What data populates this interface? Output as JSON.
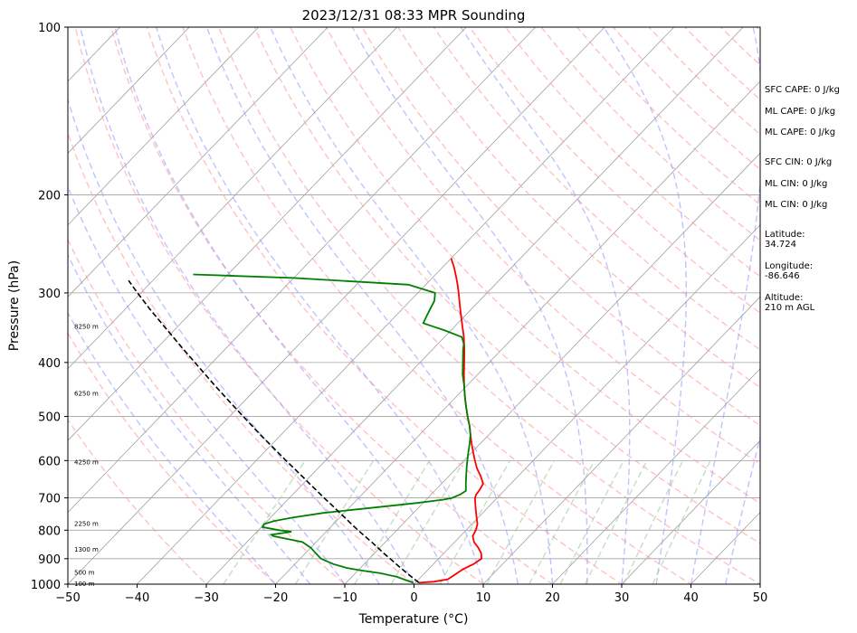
{
  "chart_data": {
    "type": "line",
    "title": "2023/12/31 08:33 MPR Sounding",
    "xlabel": "Temperature (°C)",
    "ylabel": "Pressure (hPa)",
    "xlim": [
      -50,
      50
    ],
    "ylim": [
      1000,
      100
    ],
    "y_scale": "log",
    "skew_T": true,
    "x_ticks": [
      -50,
      -40,
      -30,
      -20,
      -10,
      0,
      10,
      20,
      30,
      40,
      50
    ],
    "y_ticks": [
      100,
      200,
      300,
      400,
      500,
      600,
      700,
      800,
      900,
      1000
    ],
    "grid": true,
    "colors": {
      "temperature": "#ff0000",
      "dewpoint": "#008000",
      "parcel": "#000000",
      "dry_adiabats": "#ff9999",
      "moist_adiabats": "#9999ff",
      "mixing_ratio": "#99cc99",
      "isotherms": "#a0a0a0"
    },
    "series": [
      {
        "key": "temperature",
        "points": [
          [
            994,
            0.5
          ],
          [
            990,
            2.5
          ],
          [
            980,
            4.2
          ],
          [
            960,
            4.6
          ],
          [
            940,
            5.0
          ],
          [
            920,
            5.8
          ],
          [
            900,
            6.2
          ],
          [
            880,
            5.4
          ],
          [
            860,
            4.2
          ],
          [
            840,
            2.8
          ],
          [
            820,
            1.8
          ],
          [
            800,
            1.4
          ],
          [
            780,
            0.8
          ],
          [
            760,
            -0.2
          ],
          [
            740,
            -1.2
          ],
          [
            720,
            -2.2
          ],
          [
            700,
            -3.2
          ],
          [
            690,
            -3.5
          ],
          [
            680,
            -3.6
          ],
          [
            670,
            -3.8
          ],
          [
            660,
            -4.0
          ],
          [
            640,
            -5.4
          ],
          [
            620,
            -7.0
          ],
          [
            600,
            -8.4
          ],
          [
            580,
            -9.8
          ],
          [
            560,
            -11.2
          ],
          [
            540,
            -12.6
          ],
          [
            520,
            -14.0
          ],
          [
            500,
            -15.6
          ],
          [
            480,
            -17.2
          ],
          [
            460,
            -18.8
          ],
          [
            440,
            -20.4
          ],
          [
            420,
            -22.0
          ],
          [
            400,
            -23.6
          ],
          [
            380,
            -25.3
          ],
          [
            360,
            -27.2
          ],
          [
            340,
            -29.4
          ],
          [
            320,
            -31.7
          ],
          [
            300,
            -34.1
          ],
          [
            290,
            -35.4
          ],
          [
            280,
            -36.8
          ],
          [
            270,
            -38.3
          ],
          [
            260,
            -40.0
          ]
        ]
      },
      {
        "key": "dewpoint",
        "points": [
          [
            994,
            -0.3
          ],
          [
            985,
            -1.5
          ],
          [
            970,
            -3.5
          ],
          [
            955,
            -6.5
          ],
          [
            945,
            -9.5
          ],
          [
            935,
            -12.0
          ],
          [
            920,
            -14.5
          ],
          [
            900,
            -17.0
          ],
          [
            880,
            -18.5
          ],
          [
            860,
            -20.0
          ],
          [
            840,
            -22.0
          ],
          [
            820,
            -27.0
          ],
          [
            815,
            -27.5
          ],
          [
            805,
            -25.0
          ],
          [
            800,
            -27.0
          ],
          [
            790,
            -29.8
          ],
          [
            780,
            -30.0
          ],
          [
            770,
            -29.0
          ],
          [
            760,
            -27.0
          ],
          [
            745,
            -23.0
          ],
          [
            730,
            -17.0
          ],
          [
            715,
            -11.0
          ],
          [
            705,
            -7.5
          ],
          [
            700,
            -6.5
          ],
          [
            690,
            -5.8
          ],
          [
            680,
            -5.5
          ],
          [
            660,
            -6.5
          ],
          [
            640,
            -7.5
          ],
          [
            620,
            -8.5
          ],
          [
            600,
            -9.5
          ],
          [
            580,
            -10.5
          ],
          [
            560,
            -11.5
          ],
          [
            540,
            -12.6
          ],
          [
            520,
            -14.0
          ],
          [
            500,
            -15.6
          ],
          [
            480,
            -17.2
          ],
          [
            460,
            -18.8
          ],
          [
            440,
            -20.4
          ],
          [
            420,
            -22.2
          ],
          [
            400,
            -23.8
          ],
          [
            380,
            -25.5
          ],
          [
            370,
            -26.3
          ],
          [
            360,
            -27.5
          ],
          [
            350,
            -31.0
          ],
          [
            345,
            -33.0
          ],
          [
            340,
            -35.0
          ],
          [
            330,
            -35.5
          ],
          [
            320,
            -36.0
          ],
          [
            310,
            -36.5
          ],
          [
            300,
            -37.5
          ],
          [
            290,
            -42.5
          ],
          [
            282,
            -60.0
          ],
          [
            278,
            -75.0
          ]
        ]
      },
      {
        "key": "parcel",
        "points": [
          [
            994,
            0.5
          ],
          [
            980,
            -0.6
          ],
          [
            960,
            -2.2
          ],
          [
            940,
            -3.8
          ],
          [
            920,
            -5.4
          ],
          [
            900,
            -7.0
          ],
          [
            880,
            -8.7
          ],
          [
            860,
            -10.3
          ],
          [
            840,
            -12.0
          ],
          [
            820,
            -13.8
          ],
          [
            800,
            -15.6
          ],
          [
            780,
            -17.4
          ],
          [
            760,
            -19.2
          ],
          [
            740,
            -21.1
          ],
          [
            720,
            -23.0
          ],
          [
            700,
            -25.0
          ],
          [
            680,
            -27.0
          ],
          [
            660,
            -29.1
          ],
          [
            640,
            -31.2
          ],
          [
            620,
            -33.4
          ],
          [
            600,
            -35.7
          ],
          [
            580,
            -38.0
          ],
          [
            560,
            -40.4
          ],
          [
            540,
            -42.9
          ],
          [
            520,
            -45.4
          ],
          [
            500,
            -48.0
          ],
          [
            480,
            -50.7
          ],
          [
            460,
            -53.5
          ],
          [
            440,
            -56.4
          ],
          [
            420,
            -59.4
          ],
          [
            400,
            -62.5
          ],
          [
            380,
            -65.8
          ],
          [
            360,
            -69.2
          ],
          [
            340,
            -72.8
          ],
          [
            320,
            -76.6
          ],
          [
            300,
            -80.5
          ],
          [
            285,
            -83.5
          ]
        ]
      }
    ],
    "height_labels": [
      {
        "text": "100 m",
        "p": 1000
      },
      {
        "text": "500 m",
        "p": 955
      },
      {
        "text": "1300 m",
        "p": 868
      },
      {
        "text": "2250 m",
        "p": 780
      },
      {
        "text": "4250 m",
        "p": 605
      },
      {
        "text": "6250 m",
        "p": 455
      },
      {
        "text": "8250 m",
        "p": 345
      }
    ],
    "stats": [
      {
        "lines": [
          "SFC CAPE: 0 J/kg"
        ]
      },
      {
        "lines": [
          "ML CAPE: 0 J/kg"
        ]
      },
      {
        "lines": [
          "ML CAPE: 0 J/kg"
        ]
      },
      {
        "lines": [
          "SFC CIN: 0 J/kg"
        ]
      },
      {
        "lines": [
          "ML CIN: 0 J/kg"
        ]
      },
      {
        "lines": [
          "ML CIN: 0 J/kg"
        ]
      },
      {
        "lines": [
          "Latitude:",
          "34.724"
        ]
      },
      {
        "lines": [
          "Longitude:",
          "-86.646"
        ]
      },
      {
        "lines": [
          "Altitude:",
          "210 m AGL"
        ]
      }
    ]
  }
}
